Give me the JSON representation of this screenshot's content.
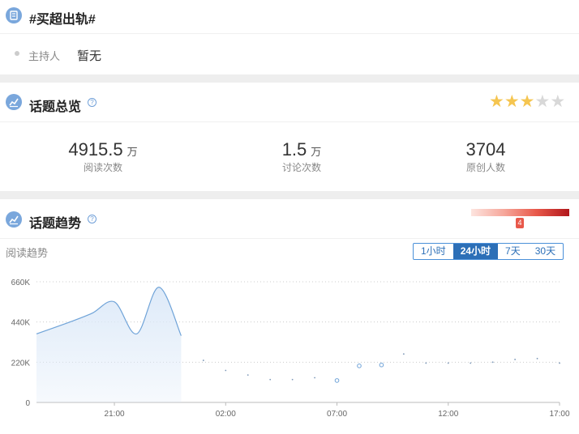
{
  "topic": {
    "title": "#买超出轨#",
    "host_label": "主持人",
    "host_value": "暂无"
  },
  "overview": {
    "title": "话题总览",
    "help_icon": "question-circle-icon",
    "rating": {
      "value": 3,
      "max": 5,
      "color_on": "#f5c550",
      "color_off": "#d8d8d8"
    },
    "stats": [
      {
        "value": "4915.5",
        "unit": "万",
        "label": "阅读次数"
      },
      {
        "value": "1.5",
        "unit": "万",
        "label": "讨论次数"
      },
      {
        "value": "3704",
        "unit": "",
        "label": "原创人数"
      }
    ]
  },
  "trend": {
    "title": "话题趋势",
    "heat_marker": "4",
    "subtitle": "阅读趋势",
    "ranges": [
      "1小时",
      "24小时",
      "7天",
      "30天"
    ],
    "active_range": "24小时"
  },
  "chart_data": {
    "type": "line",
    "x_tick_labels": [
      "21:00",
      "02:00",
      "07:00",
      "12:00",
      "17:00"
    ],
    "y_tick_labels": [
      "0",
      "220K",
      "440K",
      "660K"
    ],
    "ylim": [
      0,
      660000
    ],
    "grid": true,
    "series": [
      {
        "values": [
          [
            17.5,
            375000
          ],
          [
            19,
            440000
          ],
          [
            20,
            488000
          ],
          [
            21,
            550000
          ],
          [
            22,
            375000
          ],
          [
            23,
            630000
          ],
          [
            24,
            365000
          ],
          [
            1,
            230000
          ],
          [
            2,
            175000
          ],
          [
            3,
            150000
          ],
          [
            4,
            125000
          ],
          [
            5,
            125000
          ],
          [
            6,
            135000
          ],
          [
            7,
            120000
          ],
          [
            8,
            200000
          ],
          [
            9,
            205000
          ],
          [
            10,
            265000
          ],
          [
            11,
            215000
          ],
          [
            12,
            215000
          ],
          [
            13,
            215000
          ],
          [
            14,
            220000
          ],
          [
            15,
            235000
          ],
          [
            16,
            240000
          ],
          [
            17,
            215000
          ]
        ]
      }
    ],
    "line_color": "#6fa3d8",
    "fill_color": "#dce9f8"
  }
}
